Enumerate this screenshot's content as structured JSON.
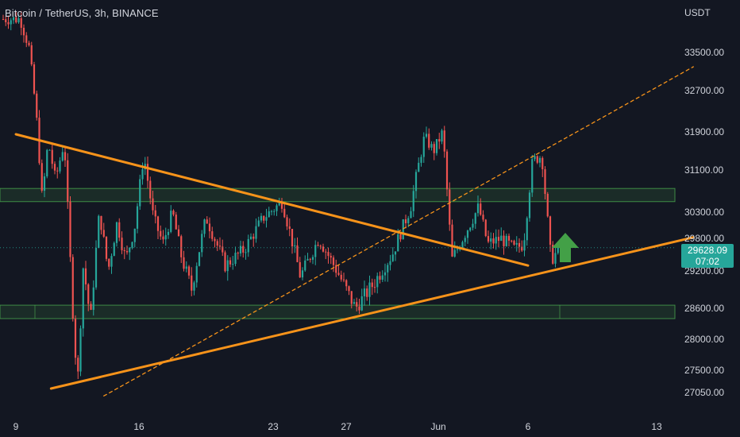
{
  "header": {
    "symbol_title": "Bitcoin / TetherUS, 3h, BINANCE",
    "currency": "USDT"
  },
  "last_price": {
    "value": "29628.09",
    "countdown": "07:02"
  },
  "colors": {
    "background": "#131722",
    "up": "#26a69a",
    "down": "#ef5350",
    "trendline": "#f7931a",
    "zone": "#4caf50",
    "arrow": "#43a047",
    "axis_text": "#d1d4dc"
  },
  "chart_data": {
    "type": "candlestick",
    "symbol": "Bitcoin / TetherUS",
    "interval": "3h",
    "exchange": "BINANCE",
    "y_axis": {
      "unit": "USDT",
      "ticks": [
        27050.0,
        27500.0,
        28000.0,
        28600.0,
        29200.0,
        29800.0,
        30300.0,
        31100.0,
        31900.0,
        32700.0,
        33500.0
      ],
      "range": [
        26800,
        34200
      ]
    },
    "x_axis": {
      "ticks": [
        "9",
        "16",
        "23",
        "27",
        "Jun",
        "6",
        "13"
      ]
    },
    "price_path_approx": [
      [
        "May 9",
        34200
      ],
      [
        "May 9",
        33600
      ],
      [
        "May 10",
        32200
      ],
      [
        "May 10",
        30500
      ],
      [
        "May 10",
        31700
      ],
      [
        "May 11",
        30900
      ],
      [
        "May 11",
        31700
      ],
      [
        "May 12",
        28900
      ],
      [
        "May 12",
        27200
      ],
      [
        "May 12",
        29300
      ],
      [
        "May 13",
        28400
      ],
      [
        "May 13",
        30300
      ],
      [
        "May 14",
        29200
      ],
      [
        "May 14",
        30100
      ],
      [
        "May 15",
        29400
      ],
      [
        "May 15",
        30000
      ],
      [
        "May 16",
        31400
      ],
      [
        "May 16",
        30200
      ],
      [
        "May 17",
        29700
      ],
      [
        "May 17",
        30300
      ],
      [
        "May 18",
        29400
      ],
      [
        "May 18",
        28900
      ],
      [
        "May 19",
        30200
      ],
      [
        "May 20",
        29300
      ],
      [
        "May 21",
        29600
      ],
      [
        "May 22",
        30200
      ],
      [
        "May 23",
        30500
      ],
      [
        "May 24",
        29100
      ],
      [
        "May 25",
        29800
      ],
      [
        "May 26",
        29200
      ],
      [
        "May 27",
        28600
      ],
      [
        "May 28",
        29000
      ],
      [
        "May 29",
        29500
      ],
      [
        "May 30",
        30400
      ],
      [
        "May 31",
        31800
      ],
      [
        "May 31",
        31500
      ],
      [
        "Jun 1",
        31900
      ],
      [
        "Jun 1",
        29400
      ],
      [
        "Jun 2",
        29900
      ],
      [
        "Jun 3",
        30400
      ],
      [
        "Jun 3",
        29700
      ],
      [
        "Jun 4",
        29800
      ],
      [
        "Jun 5",
        29600
      ],
      [
        "Jun 5",
        29700
      ],
      [
        "Jun 6",
        31300
      ],
      [
        "Jun 6",
        31400
      ],
      [
        "Jun 7",
        29400
      ],
      [
        "Jun 7",
        29628
      ]
    ],
    "annotations": {
      "descending_trendline": {
        "from": [
          "May 9",
          31850
        ],
        "to": [
          "Jun 6",
          29300
        ]
      },
      "ascending_trendline": {
        "from": [
          "May 11",
          27130
        ],
        "to": [
          "Jun 15",
          29820
        ]
      },
      "dashed_channel_line": {
        "from": [
          "May 14",
          26980
        ],
        "to": [
          "Jun 15",
          33200
        ]
      },
      "resistance_zone": [
        30500,
        30750
      ],
      "support_zone": [
        28400,
        28650
      ],
      "arrow": "up"
    }
  }
}
